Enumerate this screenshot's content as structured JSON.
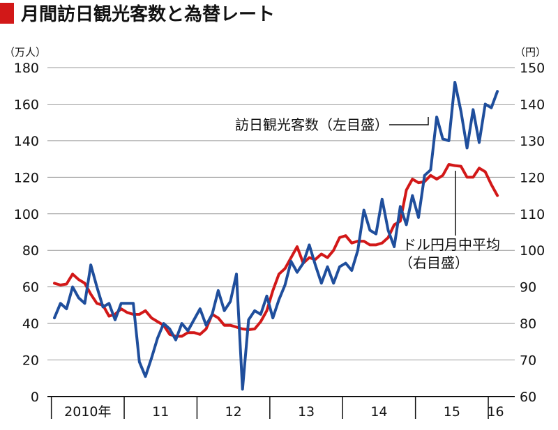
{
  "chart_data": {
    "type": "line",
    "title": "月間訪日観光客数と為替レート",
    "left_axis": {
      "unit": "（万人）",
      "range": [
        0,
        180
      ],
      "ticks": [
        0,
        20,
        40,
        60,
        80,
        100,
        120,
        140,
        160,
        180
      ]
    },
    "right_axis": {
      "unit": "（円）",
      "range": [
        60,
        150
      ],
      "ticks": [
        60,
        70,
        80,
        90,
        100,
        110,
        120,
        130,
        140,
        150
      ]
    },
    "x_labels": [
      "2010年",
      "11",
      "12",
      "13",
      "14",
      "15",
      "16"
    ],
    "grid": "horizontal",
    "colors": {
      "visitors": "#1f4e9c",
      "yen": "#d21818",
      "title_marker": "#d21818",
      "grid": "#999999"
    },
    "series": [
      {
        "name": "訪日観光客数（左目盛）",
        "axis": "left",
        "start": "2010-01",
        "values": [
          43,
          51,
          48,
          60,
          54,
          51,
          72,
          60,
          49,
          51,
          42,
          51,
          51,
          51,
          19,
          11,
          21,
          32,
          40,
          37,
          31,
          40,
          36,
          42,
          48,
          39,
          45,
          58,
          47,
          52,
          67,
          4,
          42,
          47,
          45,
          55,
          43,
          53,
          61,
          74,
          68,
          73,
          83,
          72,
          62,
          71,
          62,
          71,
          73,
          69,
          80,
          102,
          91,
          89,
          108,
          91,
          82,
          104,
          94,
          110,
          98,
          121,
          124,
          153,
          141,
          140,
          172,
          156,
          136,
          157,
          139,
          160,
          158,
          167
        ]
      },
      {
        "name": "ドル円月中平均（右目盛）",
        "axis": "right",
        "start": "2010-01",
        "values": [
          91,
          90.5,
          90.8,
          93.5,
          92,
          91,
          88,
          85.5,
          85,
          82,
          82.5,
          84,
          83,
          82.5,
          82.5,
          83.5,
          81.5,
          80.5,
          79.5,
          77,
          76.5,
          76.5,
          77.5,
          77.5,
          77,
          78.5,
          82.5,
          81.5,
          79.5,
          79.5,
          79,
          78.5,
          78.3,
          78.5,
          80.5,
          83.5,
          89,
          93.5,
          95,
          98,
          101,
          96.5,
          98,
          97.5,
          99,
          98,
          100,
          103.5,
          104,
          102,
          102.5,
          102.5,
          101.5,
          101.5,
          102,
          103.5,
          107,
          108,
          116.5,
          119.5,
          118.5,
          118.8,
          120.5,
          119.5,
          120.5,
          123.5,
          123.2,
          123,
          120,
          120,
          122.5,
          121.5,
          118,
          115
        ]
      }
    ],
    "annotations": {
      "visitors_label": "訪日観光客数（左目盛）",
      "yen_label_line1": "ドル円月中平均",
      "yen_label_line2": "（右目盛）"
    }
  }
}
